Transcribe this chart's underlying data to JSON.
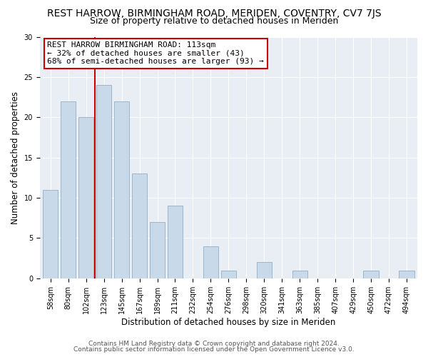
{
  "title": "REST HARROW, BIRMINGHAM ROAD, MERIDEN, COVENTRY, CV7 7JS",
  "subtitle": "Size of property relative to detached houses in Meriden",
  "xlabel": "Distribution of detached houses by size in Meriden",
  "ylabel": "Number of detached properties",
  "bin_labels": [
    "58sqm",
    "80sqm",
    "102sqm",
    "123sqm",
    "145sqm",
    "167sqm",
    "189sqm",
    "211sqm",
    "232sqm",
    "254sqm",
    "276sqm",
    "298sqm",
    "320sqm",
    "341sqm",
    "363sqm",
    "385sqm",
    "407sqm",
    "429sqm",
    "450sqm",
    "472sqm",
    "494sqm"
  ],
  "bar_values": [
    11,
    22,
    20,
    24,
    22,
    13,
    7,
    9,
    0,
    4,
    1,
    0,
    2,
    0,
    1,
    0,
    0,
    0,
    1,
    0,
    1
  ],
  "bar_color": "#c8d9ea",
  "bar_edge_color": "#9ab5cc",
  "vline_x_index": 2.5,
  "vline_color": "#cc0000",
  "annotation_line1": "REST HARROW BIRMINGHAM ROAD: 113sqm",
  "annotation_line2": "← 32% of detached houses are smaller (43)",
  "annotation_line3": "68% of semi-detached houses are larger (93) →",
  "annotation_box_color": "#ffffff",
  "annotation_box_edge": "#cc0000",
  "ylim": [
    0,
    30
  ],
  "yticks": [
    0,
    5,
    10,
    15,
    20,
    25,
    30
  ],
  "footer1": "Contains HM Land Registry data © Crown copyright and database right 2024.",
  "footer2": "Contains public sector information licensed under the Open Government Licence v3.0.",
  "bg_color": "#ffffff",
  "plot_bg_color": "#e8eef4",
  "title_fontsize": 10,
  "subtitle_fontsize": 9,
  "axis_label_fontsize": 8.5,
  "tick_fontsize": 7,
  "annotation_fontsize": 8,
  "footer_fontsize": 6.5,
  "grid_color": "#ffffff"
}
